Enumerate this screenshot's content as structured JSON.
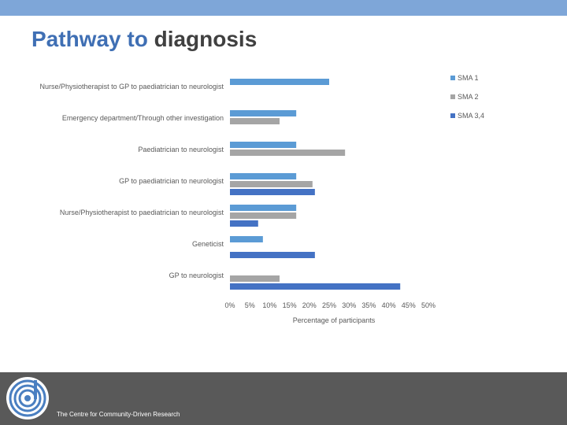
{
  "slide": {
    "title_part1": "Pathway to",
    "title_part2": "diagnosis",
    "footer_text": "The Centre for Community-Driven Research"
  },
  "chart_data": {
    "type": "bar",
    "orientation": "horizontal",
    "categories": [
      "Nurse/Physiotherapist to GP to paediatrician to neurologist",
      "Emergency department/Through other investigation",
      "Paediatrician to neurologist",
      "GP to paediatrician to neurologist",
      "Nurse/Physiotherapist to paediatrician to neurologist",
      "Geneticist",
      "GP to neurologist"
    ],
    "series": [
      {
        "name": "SMA 1",
        "color": "#5b9bd5",
        "values": [
          25,
          16.7,
          16.7,
          16.7,
          16.7,
          8.3,
          0
        ]
      },
      {
        "name": "SMA 2",
        "color": "#a5a5a5",
        "values": [
          0,
          12.5,
          29,
          20.8,
          16.7,
          0,
          12.5
        ]
      },
      {
        "name": "SMA 3,4",
        "color": "#4472c4",
        "values": [
          0,
          0,
          0,
          21.4,
          7.1,
          21.4,
          42.9
        ]
      }
    ],
    "xlim": [
      0,
      50
    ],
    "xticks": [
      "0%",
      "5%",
      "10%",
      "15%",
      "20%",
      "25%",
      "30%",
      "35%",
      "40%",
      "45%",
      "50%"
    ],
    "xlabel": "Percentage of participants",
    "ylabel": "",
    "legend": "right",
    "grid": false
  }
}
